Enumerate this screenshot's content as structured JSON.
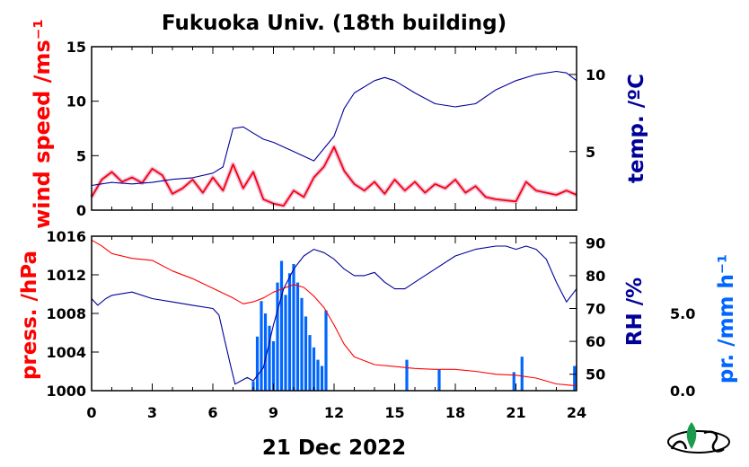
{
  "title": "Fukuoka Univ. (18th building)",
  "date_label": "21 Dec 2022",
  "colors": {
    "wind": "#ff0000",
    "wind_raw": "#cc88cc",
    "temp": "#000099",
    "pressure": "#ff0000",
    "rh": "#000099",
    "precip": "#0066ff",
    "frame": "#000000"
  },
  "chart_data": [
    {
      "type": "line",
      "panel": "top",
      "xlabel": "",
      "xlim": [
        0,
        24
      ],
      "x_ticks": [
        "0",
        "3",
        "6",
        "9",
        "12",
        "15",
        "18",
        "21",
        "24"
      ],
      "left_axis": {
        "label": "wind speed /ms⁻¹",
        "ylim": [
          0,
          15
        ],
        "ticks": [
          "0",
          "5",
          "10",
          "15"
        ]
      },
      "right_axis": {
        "label": "temp. /ºC",
        "ylim": [
          1.2,
          11.8
        ],
        "ticks": [
          "5",
          "10"
        ]
      },
      "series": [
        {
          "axis": "left",
          "x": [
            0,
            0.5,
            1,
            1.5,
            2,
            2.5,
            3,
            3.5,
            4,
            4.5,
            5,
            5.5,
            6,
            6.5,
            7,
            7.5,
            8,
            8.5,
            9,
            9.5,
            10,
            10.5,
            11,
            11.5,
            12,
            12.5,
            13,
            13.5,
            14,
            14.5,
            15,
            15.5,
            16,
            16.5,
            17,
            17.5,
            18,
            18.5,
            19,
            19.5,
            20,
            20.5,
            21,
            21.5,
            22,
            22.5,
            23,
            23.5,
            24
          ],
          "values": [
            1.2,
            2.8,
            3.5,
            2.6,
            3.0,
            2.5,
            3.8,
            3.2,
            1.5,
            2.0,
            2.8,
            1.6,
            3.0,
            1.8,
            4.2,
            2.0,
            3.5,
            1.0,
            0.6,
            0.4,
            1.8,
            1.2,
            3.0,
            4.0,
            5.8,
            3.6,
            2.4,
            1.8,
            2.6,
            1.5,
            2.8,
            1.8,
            2.6,
            1.6,
            2.4,
            2.0,
            2.8,
            1.6,
            2.2,
            1.2,
            1.0,
            0.9,
            0.8,
            2.6,
            1.8,
            1.6,
            1.4,
            1.8,
            1.4
          ]
        },
        {
          "axis": "right",
          "x": [
            0,
            1,
            2,
            3,
            4,
            5,
            6,
            6.5,
            7,
            7.5,
            8,
            8.5,
            9,
            10,
            11,
            12,
            12.5,
            13,
            14,
            14.5,
            15,
            16,
            17,
            18,
            19,
            20,
            21,
            22,
            23,
            23.5,
            24
          ],
          "values": [
            2.8,
            3.0,
            2.9,
            3.0,
            3.2,
            3.3,
            3.6,
            4.0,
            6.5,
            6.6,
            6.2,
            5.8,
            5.6,
            5.0,
            4.4,
            6.0,
            7.8,
            8.8,
            9.6,
            9.8,
            9.6,
            8.8,
            8.1,
            7.9,
            8.1,
            9.0,
            9.6,
            10.0,
            10.2,
            10.1,
            9.6
          ]
        }
      ]
    },
    {
      "type": "line",
      "panel": "bottom",
      "xlabel": "21 Dec 2022",
      "xlim": [
        0,
        24
      ],
      "x_ticks": [
        "0",
        "3",
        "6",
        "9",
        "12",
        "15",
        "18",
        "21",
        "24"
      ],
      "left_axis": {
        "label": "press. /hPa",
        "ylim": [
          1000,
          1016
        ],
        "ticks": [
          "1000",
          "1004",
          "1008",
          "1012",
          "1016"
        ]
      },
      "right_axis": {
        "label": "RH /%",
        "ylim": [
          45,
          92
        ],
        "ticks": [
          "50",
          "60",
          "70",
          "80",
          "90"
        ]
      },
      "precip_axis": {
        "label": "pr. /mm h⁻¹",
        "ylim": [
          0,
          10
        ],
        "ticks": [
          "0.0",
          "5.0"
        ]
      },
      "series": [
        {
          "axis": "left",
          "x": [
            0,
            0.5,
            1,
            2,
            3,
            4,
            5,
            6,
            7,
            7.5,
            8,
            8.5,
            9,
            9.5,
            10,
            10.5,
            11,
            11.5,
            12,
            12.5,
            13,
            14,
            15,
            16,
            17,
            18,
            19,
            20,
            21,
            22,
            23,
            24
          ],
          "values": [
            1015.6,
            1015.0,
            1014.2,
            1013.7,
            1013.5,
            1012.4,
            1011.6,
            1010.6,
            1009.6,
            1009.0,
            1009.2,
            1009.6,
            1010.2,
            1010.6,
            1011.0,
            1010.7,
            1009.8,
            1008.6,
            1006.8,
            1004.8,
            1003.5,
            1002.7,
            1002.5,
            1002.3,
            1002.2,
            1002.2,
            1002.0,
            1001.7,
            1001.6,
            1001.3,
            1000.7,
            1000.5
          ]
        },
        {
          "axis": "right",
          "x": [
            0,
            0.3,
            0.7,
            1,
            2,
            3,
            4,
            5,
            6,
            6.3,
            6.6,
            6.9,
            7.1,
            7.4,
            7.7,
            8,
            8.5,
            9,
            9.5,
            10,
            10.5,
            11,
            11.5,
            12,
            12.5,
            13,
            13.5,
            14,
            14.5,
            15,
            15.5,
            16,
            17,
            18,
            19,
            20,
            20.5,
            21,
            21.5,
            22,
            22.5,
            23,
            23.5,
            24
          ],
          "values": [
            73,
            71,
            73,
            74,
            75,
            73,
            72,
            71,
            70,
            68,
            60,
            52,
            47,
            48,
            49,
            48,
            52,
            65,
            76,
            82,
            86,
            88,
            87,
            85,
            82,
            80,
            80,
            81,
            78,
            76,
            76,
            78,
            82,
            86,
            88,
            89,
            89,
            88,
            89,
            88,
            85,
            78,
            72,
            76
          ]
        }
      ],
      "precip": {
        "x": [
          8.0,
          8.2,
          8.4,
          8.6,
          8.8,
          9.0,
          9.2,
          9.4,
          9.6,
          9.8,
          10.0,
          10.2,
          10.4,
          10.6,
          10.8,
          11.0,
          11.2,
          11.4,
          11.6,
          15.6,
          17.2,
          20.9,
          21.3,
          23.9
        ],
        "values": [
          0.6,
          3.5,
          5.8,
          5.0,
          4.2,
          3.2,
          7.0,
          8.4,
          6.2,
          7.6,
          8.2,
          7.0,
          6.0,
          4.8,
          3.6,
          2.8,
          2.0,
          1.6,
          5.2,
          2.0,
          1.4,
          1.2,
          2.2,
          1.6
        ]
      }
    }
  ]
}
